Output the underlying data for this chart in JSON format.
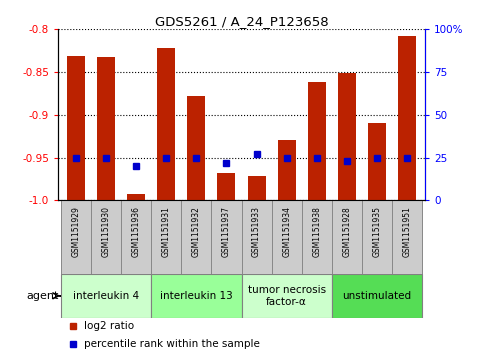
{
  "title": "GDS5261 / A_24_P123658",
  "samples": [
    "GSM1151929",
    "GSM1151930",
    "GSM1151936",
    "GSM1151931",
    "GSM1151932",
    "GSM1151937",
    "GSM1151933",
    "GSM1151934",
    "GSM1151938",
    "GSM1151928",
    "GSM1151935",
    "GSM1151951"
  ],
  "log2_ratio": [
    -0.832,
    -0.833,
    -0.993,
    -0.822,
    -0.878,
    -0.968,
    -0.972,
    -0.93,
    -0.862,
    -0.851,
    -0.91,
    -0.808
  ],
  "percentile_rank": [
    25,
    25,
    20,
    25,
    25,
    22,
    27,
    25,
    25,
    23,
    25,
    25
  ],
  "bar_color": "#bb2200",
  "point_color": "#0000cc",
  "ymin": -1.0,
  "ymax": -0.8,
  "yticks_left": [
    -1.0,
    -0.95,
    -0.9,
    -0.85,
    -0.8
  ],
  "yticks_right": [
    0,
    25,
    50,
    75,
    100
  ],
  "agent_groups": [
    {
      "label": "interleukin 4",
      "start": 0,
      "end": 3,
      "color": "#ccffcc"
    },
    {
      "label": "interleukin 13",
      "start": 3,
      "end": 6,
      "color": "#99ff99"
    },
    {
      "label": "tumor necrosis\nfactor-α",
      "start": 6,
      "end": 9,
      "color": "#ccffcc"
    },
    {
      "label": "unstimulated",
      "start": 9,
      "end": 12,
      "color": "#55dd55"
    }
  ],
  "sample_box_color": "#cccccc",
  "sample_box_edge": "#888888",
  "bar_width": 0.6,
  "figsize": [
    4.83,
    3.63
  ],
  "dpi": 100
}
